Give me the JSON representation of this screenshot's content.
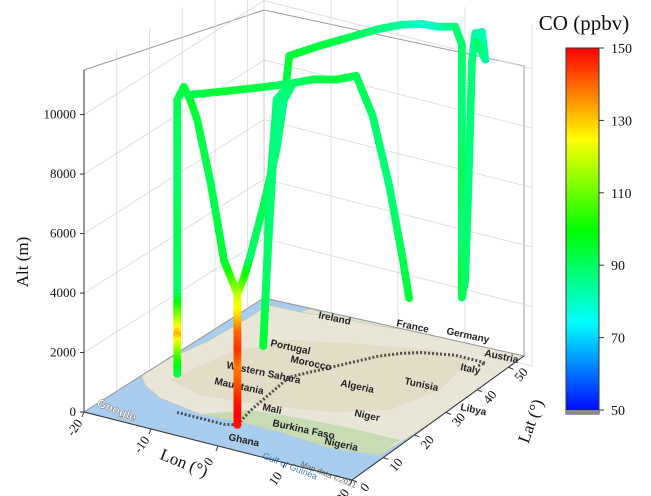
{
  "chart_data": {
    "type": "scatter",
    "projection": "3d",
    "title": "",
    "xlabel": "Lon (°)",
    "ylabel": "Lat (°)",
    "zlabel": "Alt (m)",
    "xlim": [
      -20,
      20
    ],
    "ylim": [
      0,
      55
    ],
    "zlim": [
      0,
      11500
    ],
    "xticks": [
      "-20",
      "-10",
      "0",
      "10",
      "20"
    ],
    "yticks": [
      "0",
      "10",
      "20",
      "30",
      "40",
      "50"
    ],
    "zticks": [
      "0",
      "2000",
      "4000",
      "6000",
      "8000",
      "10000"
    ],
    "grid": true,
    "colorbar": {
      "title": "CO (ppbv)",
      "min": 50,
      "max": 150,
      "ticks": [
        "50",
        "70",
        "90",
        "110",
        "130",
        "150"
      ],
      "colors": [
        "#0000ff",
        "#00ffff",
        "#00ff00",
        "#ffff00",
        "#ff0000"
      ]
    },
    "basemap_labels": {
      "countries": [
        "Ireland",
        "France",
        "Germany",
        "Austria",
        "Portugal",
        "Italy",
        "Morocco",
        "Algeria",
        "Tunisia",
        "Western Sahara",
        "Mauritania",
        "Mali",
        "Burkina Faso",
        "Niger",
        "Nigeria",
        "Libya",
        "Ghana"
      ],
      "sea": "Gulf of Guinea",
      "logo": "Google",
      "credit": "Map data ©2021"
    },
    "series": [
      {
        "points": [
          [
            -1.5,
            9,
            0,
            148
          ],
          [
            -1.5,
            9,
            400,
            150
          ],
          [
            -1.5,
            9,
            800,
            148
          ],
          [
            -1.5,
            9,
            1400,
            142
          ],
          [
            -1.5,
            9,
            2000,
            138
          ],
          [
            -1.5,
            9,
            2600,
            145
          ],
          [
            -1.5,
            9,
            3200,
            140
          ],
          [
            -1.5,
            9,
            3800,
            128
          ],
          [
            -1.5,
            9,
            4400,
            120
          ],
          [
            -2,
            12,
            4700,
            105
          ],
          [
            -2.5,
            15,
            5200,
            90
          ],
          [
            -3,
            20,
            6500,
            92
          ],
          [
            -3.5,
            25,
            8000,
            90
          ],
          [
            -3.8,
            28,
            9500,
            92
          ],
          [
            -4,
            30,
            10800,
            95
          ],
          [
            -2,
            35,
            10900,
            94
          ],
          [
            0,
            40,
            10950,
            92
          ],
          [
            2,
            45,
            11000,
            88
          ],
          [
            4,
            48,
            11050,
            85
          ],
          [
            6,
            50,
            11050,
            80
          ],
          [
            8,
            51,
            11000,
            82
          ],
          [
            10,
            52,
            11050,
            88
          ],
          [
            11,
            52,
            10500,
            90
          ],
          [
            11,
            52,
            8000,
            88
          ],
          [
            11,
            52,
            6000,
            92
          ],
          [
            11,
            52,
            4000,
            88
          ],
          [
            11,
            52,
            2600,
            95
          ],
          [
            11,
            52,
            2000,
            92
          ],
          [
            11.5,
            52,
            2600,
            90
          ],
          [
            12,
            52,
            6000,
            88
          ],
          [
            12.5,
            52,
            10000,
            88
          ],
          [
            13,
            52,
            11000,
            85
          ],
          [
            14,
            52,
            11100,
            82
          ],
          [
            14.5,
            52,
            10200,
            85
          ],
          [
            14.2,
            50,
            10900,
            90
          ]
        ]
      },
      {
        "points": [
          [
            -1.5,
            9,
            4400,
            120
          ],
          [
            -3,
            8,
            5500,
            95
          ],
          [
            -5,
            8,
            8000,
            92
          ],
          [
            -7,
            8,
            10000,
            94
          ],
          [
            -8,
            8,
            10600,
            96
          ],
          [
            -9,
            8,
            11000,
            95
          ],
          [
            -10,
            8,
            10500,
            92
          ],
          [
            -10,
            8,
            8000,
            90
          ],
          [
            -10,
            8,
            6000,
            92
          ],
          [
            -10,
            8,
            4000,
            90
          ],
          [
            -10,
            8,
            2600,
            132
          ],
          [
            -10,
            8,
            1800,
            105
          ],
          [
            -10,
            8,
            1300,
            95
          ]
        ]
      },
      {
        "points": [
          [
            -8,
            8,
            10800,
            92
          ],
          [
            -5,
            12,
            10800,
            95
          ],
          [
            -2,
            18,
            10700,
            93
          ],
          [
            0,
            22,
            10650,
            90
          ],
          [
            -2,
            22,
            10000,
            88
          ],
          [
            -3,
            22,
            7000,
            90
          ],
          [
            -3.5,
            22,
            4000,
            92
          ],
          [
            -4,
            22,
            1600,
            95
          ],
          [
            -3.5,
            22,
            4000,
            90
          ],
          [
            -2.5,
            22,
            8000,
            88
          ],
          [
            -1,
            22,
            10000,
            86
          ],
          [
            0.5,
            22,
            10700,
            90
          ],
          [
            2,
            25,
            10700,
            92
          ],
          [
            4,
            28,
            10600,
            94
          ],
          [
            5,
            32,
            10500,
            92
          ],
          [
            6,
            35,
            9000,
            90
          ],
          [
            7,
            38,
            6500,
            88
          ],
          [
            8,
            40,
            4000,
            92
          ],
          [
            8.5,
            41,
            2600,
            95
          ]
        ]
      }
    ]
  }
}
